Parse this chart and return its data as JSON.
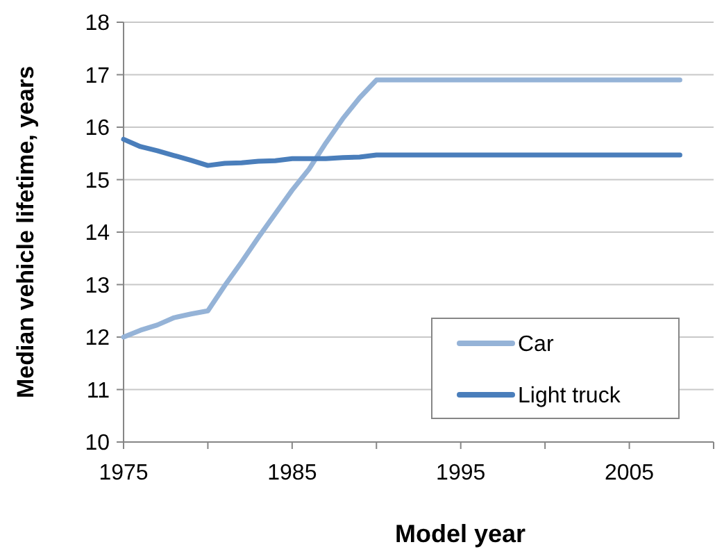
{
  "chart_data": {
    "type": "line",
    "xlabel": "Model year",
    "ylabel": "Median vehicle lifetime, years",
    "x": [
      1975,
      1976,
      1977,
      1978,
      1979,
      1980,
      1981,
      1982,
      1983,
      1984,
      1985,
      1986,
      1987,
      1988,
      1989,
      1990,
      1991,
      1992,
      1993,
      1994,
      1995,
      1996,
      1997,
      1998,
      1999,
      2000,
      2001,
      2002,
      2003,
      2004,
      2005,
      2006,
      2007,
      2008
    ],
    "series": [
      {
        "name": "Car",
        "color": "#95b3d7",
        "values": [
          12.0,
          12.13,
          12.23,
          12.37,
          12.44,
          12.5,
          12.98,
          13.43,
          13.9,
          14.35,
          14.8,
          15.2,
          15.7,
          16.16,
          16.56,
          16.9,
          16.9,
          16.9,
          16.9,
          16.9,
          16.9,
          16.9,
          16.9,
          16.9,
          16.9,
          16.9,
          16.9,
          16.9,
          16.9,
          16.9,
          16.9,
          16.9,
          16.9,
          16.9
        ]
      },
      {
        "name": "Light truck",
        "color": "#4a7ebb",
        "values": [
          15.77,
          15.63,
          15.55,
          15.46,
          15.37,
          15.27,
          15.31,
          15.32,
          15.35,
          15.36,
          15.4,
          15.4,
          15.4,
          15.42,
          15.43,
          15.47,
          15.47,
          15.47,
          15.47,
          15.47,
          15.47,
          15.47,
          15.47,
          15.47,
          15.47,
          15.47,
          15.47,
          15.47,
          15.47,
          15.47,
          15.47,
          15.47,
          15.47,
          15.47
        ]
      }
    ],
    "xlim": [
      1975,
      2010
    ],
    "xticks": [
      1975,
      {
        "value": 1980,
        "label": null
      },
      1985,
      {
        "value": 1990,
        "label": null
      },
      1995,
      {
        "value": 2000,
        "label": null
      },
      2005,
      {
        "value": 2010,
        "label": null
      }
    ],
    "ylim": [
      10,
      18
    ],
    "yticks": [
      10,
      11,
      12,
      13,
      14,
      15,
      16,
      17,
      18
    ],
    "grid": "y",
    "legend": "bottom right",
    "marker": "none",
    "line_style": "solid"
  }
}
